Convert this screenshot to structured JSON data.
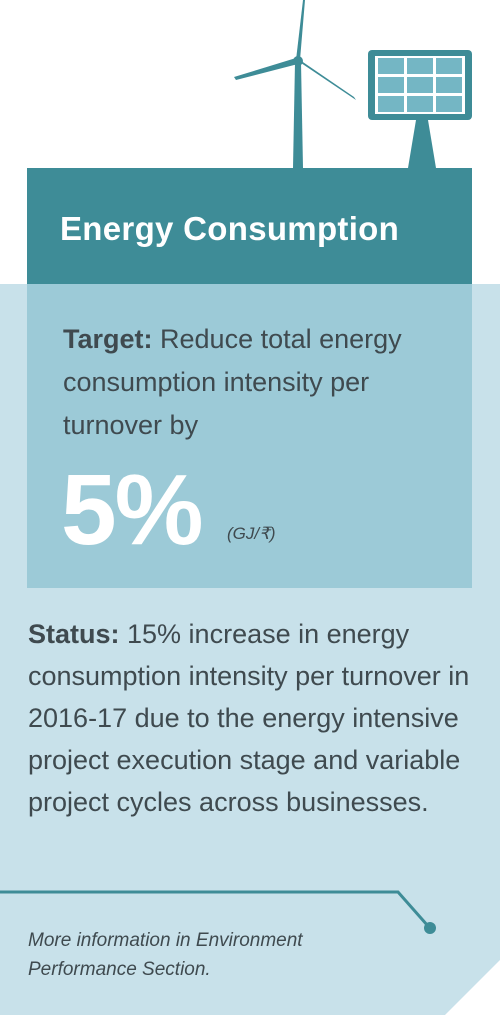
{
  "header": {
    "title": "Energy Consumption"
  },
  "target": {
    "label": "Target:",
    "text": " Reduce total energy consumption intensity per turnover by",
    "value": "5%",
    "unit": "(GJ/₹)"
  },
  "status": {
    "label": "Status:",
    "text": " 15% increase in energy consumption intensity per turnover in 2016-17 due to the energy intensive project execution stage and variable project cycles across businesses."
  },
  "footer": {
    "note": "More information in Environment Performance Section."
  },
  "colors": {
    "teal_dark": "#3e8c97",
    "teal_mid": "#9ccad7",
    "teal_light": "#c8e1ea",
    "text_dark": "#3f4a4f"
  },
  "icons": [
    "wind-turbine-icon",
    "solar-panel-icon"
  ]
}
